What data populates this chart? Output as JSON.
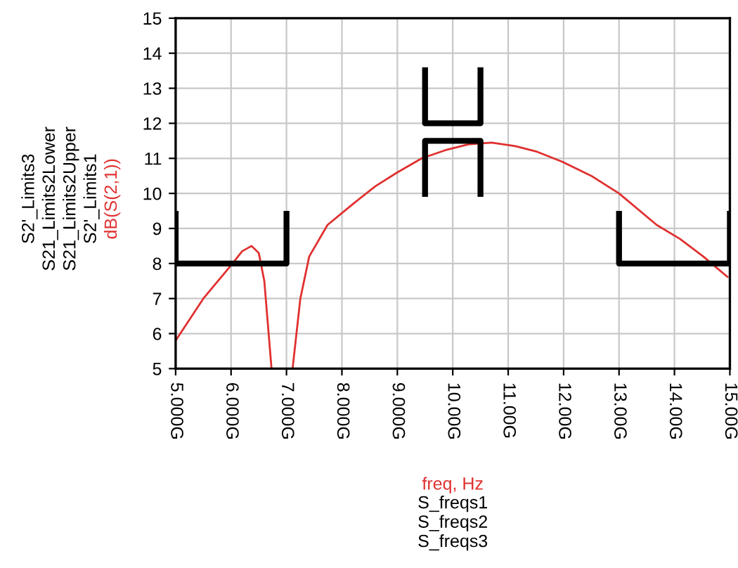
{
  "chart_data": {
    "type": "line",
    "xlabel": "freq, Hz",
    "ylabel": "S2'_Limits1\nS21_Limits2Upper\nS21_Limits2Lower\nS2'_Limits3",
    "annotations": [
      "S_freqs1",
      "S_freqs2",
      "S_freqs3"
    ],
    "series": [
      {
        "name": "dB(S(2,1))",
        "color": "#e03030",
        "x": [
          5.0,
          5.5,
          6.0,
          6.2,
          6.37,
          6.5,
          6.6,
          6.73,
          null,
          7.11,
          7.25,
          7.41,
          7.74,
          8.2,
          8.6,
          9.0,
          9.44,
          9.9,
          10.28,
          10.7,
          11.13,
          11.5,
          11.98,
          12.5,
          13.0,
          13.68,
          14.1,
          14.52,
          14.97
        ],
        "values": [
          5.8,
          7.0,
          7.95,
          8.35,
          8.5,
          8.3,
          7.5,
          5.0,
          null,
          5.0,
          7.0,
          8.2,
          9.1,
          9.7,
          10.2,
          10.6,
          11.0,
          11.25,
          11.4,
          11.45,
          11.35,
          11.2,
          10.9,
          10.5,
          10.0,
          9.1,
          8.7,
          8.2,
          7.6
        ]
      },
      {
        "color": "#000000",
        "x": [
          5,
          5,
          7,
          7
        ],
        "values": [
          9.5,
          8,
          8,
          9.5
        ]
      },
      {
        "color": "#000000",
        "x": [
          9.5,
          9.5,
          10.5,
          10.5
        ],
        "values": [
          13.6,
          12,
          12,
          13.6
        ]
      },
      {
        "color": "#000000",
        "x": [
          9.5,
          9.5,
          10.5,
          10.5
        ],
        "values": [
          9.9,
          11.5,
          11.5,
          9.9
        ]
      },
      {
        "color": "#000000",
        "x": [
          13,
          13,
          15,
          15
        ],
        "values": [
          9.5,
          8,
          8,
          9.5
        ]
      }
    ],
    "xlim": [
      5,
      15
    ],
    "ylim": [
      5,
      15
    ],
    "xticks": [
      {
        "value": 5,
        "label": "5.000G"
      },
      {
        "value": 6,
        "label": "6.000G"
      },
      {
        "value": 7,
        "label": "7.000G"
      },
      {
        "value": 8,
        "label": "8.000G"
      },
      {
        "value": 9,
        "label": "9.000G"
      },
      {
        "value": 10,
        "label": "10.00G"
      },
      {
        "value": 11,
        "label": "11.00G"
      },
      {
        "value": 12,
        "label": "12.00G"
      },
      {
        "value": 13,
        "label": "13.00G"
      },
      {
        "value": 14,
        "label": "14.00G"
      },
      {
        "value": 15,
        "label": "15.00G"
      }
    ],
    "yticks": [
      5,
      6,
      7,
      8,
      9,
      10,
      11,
      12,
      13,
      14,
      15
    ],
    "grid": true,
    "legend": "left"
  }
}
